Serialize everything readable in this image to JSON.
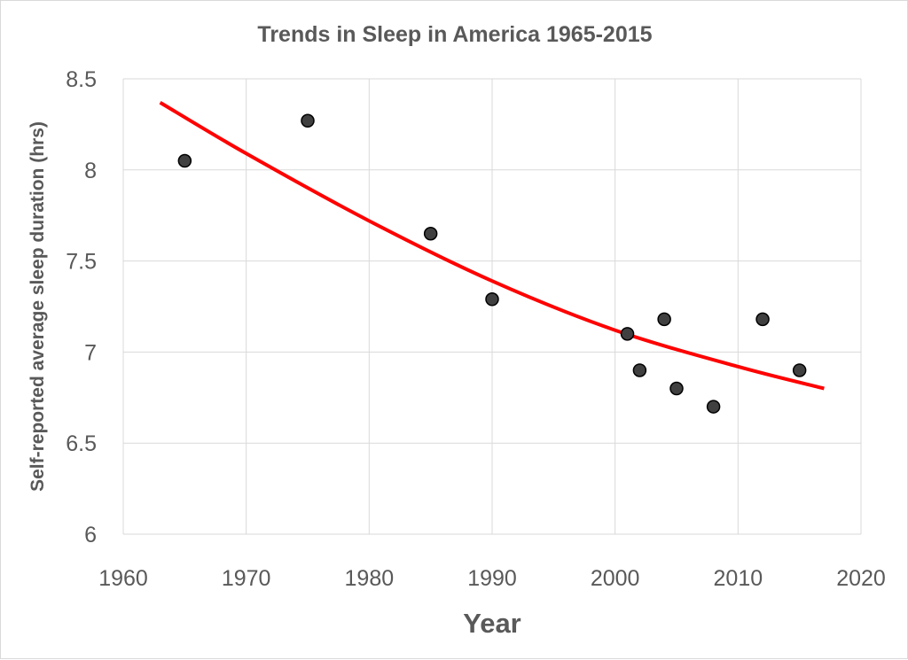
{
  "chart_data": {
    "type": "scatter",
    "title": "Trends in Sleep in America 1965-2015",
    "xlabel": "Year",
    "ylabel": "Self-reported average sleep duration (hrs)",
    "xlim": [
      1960,
      2020
    ],
    "ylim": [
      6,
      8.5
    ],
    "xticks": [
      "1960",
      "1970",
      "1980",
      "1990",
      "2000",
      "2010",
      "2020"
    ],
    "yticks": [
      "6",
      "6.5",
      "7",
      "7.5",
      "8",
      "8.5"
    ],
    "grid": true,
    "series": [
      {
        "marker_color": "#404040",
        "points": [
          {
            "x": 1965,
            "y": 8.05
          },
          {
            "x": 1975,
            "y": 8.27
          },
          {
            "x": 1985,
            "y": 7.65
          },
          {
            "x": 1990,
            "y": 7.29
          },
          {
            "x": 2001,
            "y": 7.1
          },
          {
            "x": 2002,
            "y": 6.9
          },
          {
            "x": 2004,
            "y": 7.18
          },
          {
            "x": 2005,
            "y": 6.8
          },
          {
            "x": 2008,
            "y": 6.7
          },
          {
            "x": 2012,
            "y": 7.18
          },
          {
            "x": 2015,
            "y": 6.9
          }
        ]
      }
    ],
    "trendline": {
      "type": "polynomial",
      "color": "#ff0000",
      "points": [
        {
          "x": 1963,
          "y": 8.37
        },
        {
          "x": 1970,
          "y": 8.09
        },
        {
          "x": 1980,
          "y": 7.72
        },
        {
          "x": 1990,
          "y": 7.39
        },
        {
          "x": 2000,
          "y": 7.12
        },
        {
          "x": 2010,
          "y": 6.92
        },
        {
          "x": 2017,
          "y": 6.8
        }
      ]
    }
  }
}
